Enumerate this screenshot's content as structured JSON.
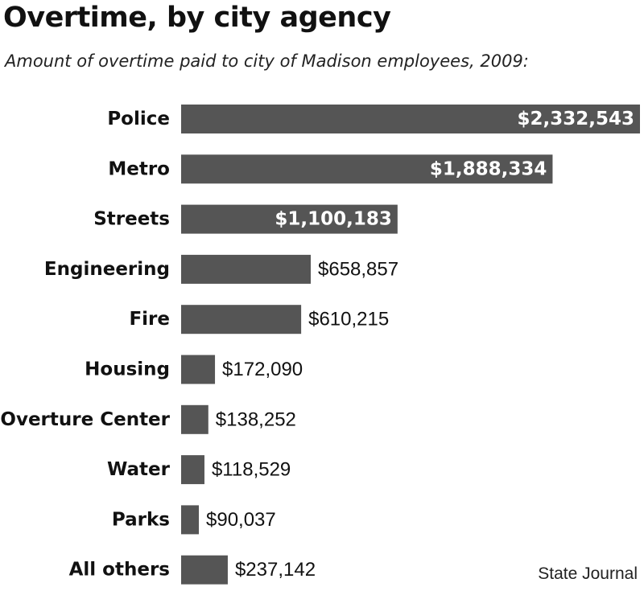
{
  "title": "Overtime, by city agency",
  "subtitle": "Amount of overtime paid to city of Madison employees, 2009:",
  "credit": "State Journal",
  "colors": {
    "bar": "#555555",
    "text": "#111111",
    "inside_label": "#ffffff"
  },
  "chart_data": {
    "type": "bar",
    "orientation": "horizontal",
    "categories": [
      "Police",
      "Metro",
      "Streets",
      "Engineering",
      "Fire",
      "Housing",
      "Overture Center",
      "Water",
      "Parks",
      "All others"
    ],
    "values": [
      2332543,
      1888334,
      1100183,
      658857,
      610215,
      172090,
      138252,
      118529,
      90037,
      237142
    ],
    "data_labels": [
      "$2,332,543",
      "$1,888,334",
      "$1,100,183",
      "$658,857",
      "$610,215",
      "$172,090",
      "$138,252",
      "$118,529",
      "$90,037",
      "$237,142"
    ],
    "title": "Overtime, by city agency",
    "subtitle": "Amount of overtime paid to city of Madison employees, 2009:",
    "xlabel": "",
    "ylabel": "",
    "xlim": [
      0,
      2332543
    ],
    "grid": false,
    "legend": "none"
  }
}
